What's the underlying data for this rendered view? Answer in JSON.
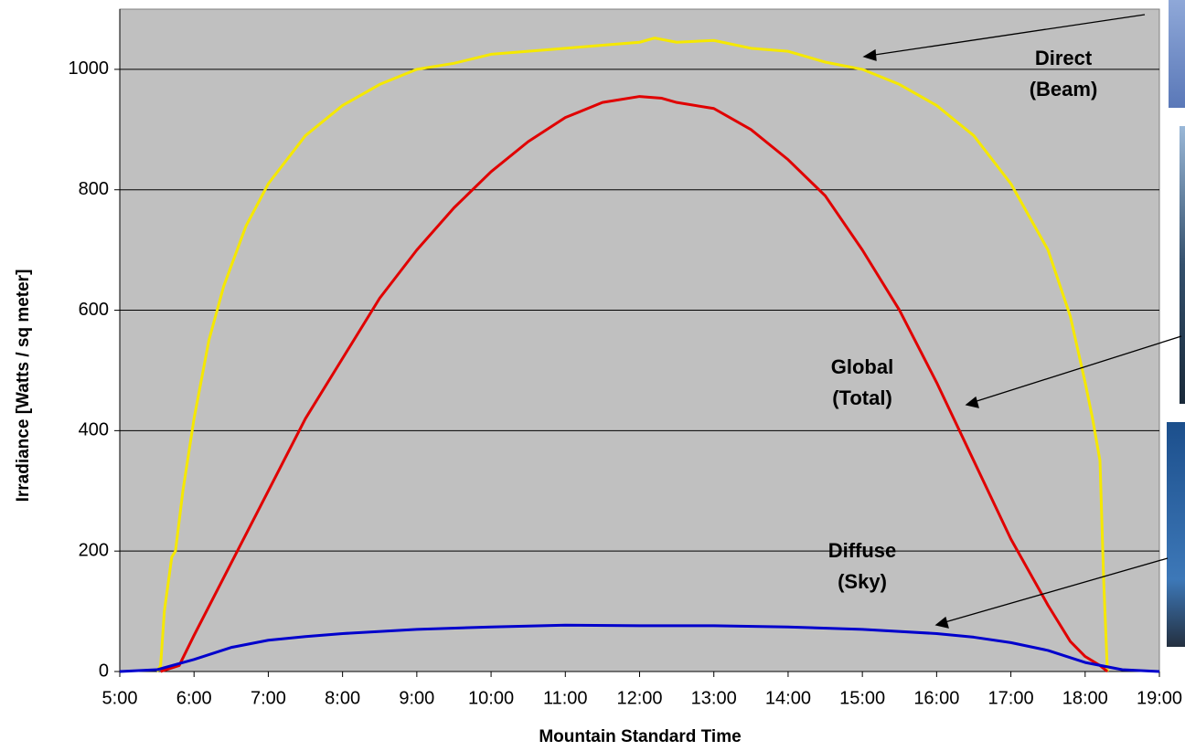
{
  "chart_data": {
    "type": "line",
    "x_label": "Mountain Standard Time",
    "y_label": "Irradiance [Watts / sq meter]",
    "xlim": [
      5,
      19
    ],
    "xticks": [
      {
        "value": 5,
        "label": "5:00"
      },
      {
        "value": 6,
        "label": "6:00"
      },
      {
        "value": 7,
        "label": "7:00"
      },
      {
        "value": 8,
        "label": "8:00"
      },
      {
        "value": 9,
        "label": "9:00"
      },
      {
        "value": 10,
        "label": "10:00"
      },
      {
        "value": 11,
        "label": "11:00"
      },
      {
        "value": 12,
        "label": "12:00"
      },
      {
        "value": 13,
        "label": "13:00"
      },
      {
        "value": 14,
        "label": "14:00"
      },
      {
        "value": 15,
        "label": "15:00"
      },
      {
        "value": 16,
        "label": "16:00"
      },
      {
        "value": 17,
        "label": "17:00"
      },
      {
        "value": 18,
        "label": "18:00"
      },
      {
        "value": 19,
        "label": "19:00"
      }
    ],
    "ylim": [
      0,
      1100
    ],
    "yticks": [
      0,
      200,
      400,
      600,
      800,
      1000
    ],
    "grid": true,
    "background": "#c0c0c0",
    "series": [
      {
        "color": "#f5e800",
        "x": [
          5.5,
          5.55,
          5.6,
          5.7,
          5.75,
          5.85,
          6,
          6.2,
          6.4,
          6.7,
          7,
          7.5,
          8,
          8.5,
          9,
          9.5,
          10,
          10.5,
          11,
          11.5,
          12,
          12.2,
          12.5,
          13,
          13.5,
          14,
          14.5,
          15,
          15.5,
          16,
          16.5,
          17,
          17.5,
          17.8,
          18,
          18.1,
          18.2,
          18.25,
          18.3
        ],
        "values": [
          0,
          10,
          100,
          190,
          200,
          300,
          420,
          550,
          640,
          740,
          810,
          890,
          940,
          975,
          1000,
          1010,
          1025,
          1030,
          1035,
          1040,
          1045,
          1052,
          1045,
          1048,
          1035,
          1030,
          1012,
          1000,
          975,
          940,
          890,
          810,
          700,
          590,
          480,
          420,
          350,
          150,
          0
        ]
      },
      {
        "color": "#e00000",
        "x": [
          5.55,
          5.8,
          6,
          6.5,
          7,
          7.5,
          8,
          8.5,
          9,
          9.5,
          10,
          10.5,
          11,
          11.5,
          12,
          12.3,
          12.5,
          13,
          13.5,
          14,
          14.5,
          15,
          15.5,
          16,
          16.5,
          17,
          17.5,
          17.8,
          18,
          18.2,
          18.3
        ],
        "values": [
          0,
          10,
          60,
          180,
          300,
          420,
          520,
          620,
          700,
          770,
          830,
          880,
          920,
          945,
          955,
          952,
          945,
          935,
          900,
          850,
          790,
          700,
          600,
          480,
          350,
          220,
          110,
          50,
          25,
          10,
          0
        ]
      },
      {
        "color": "#0000cc",
        "x": [
          5,
          5.5,
          6,
          6.5,
          7,
          7.5,
          8,
          9,
          10,
          11,
          12,
          13,
          14,
          15,
          16,
          16.5,
          17,
          17.5,
          18,
          18.5,
          19
        ],
        "values": [
          0,
          3,
          20,
          40,
          52,
          58,
          63,
          70,
          74,
          77,
          76,
          76,
          74,
          70,
          63,
          57,
          48,
          35,
          15,
          3,
          0
        ]
      }
    ],
    "annotations": [
      {
        "text": [
          "Direct",
          "(Beam)"
        ]
      },
      {
        "text": [
          "Global",
          "(Total)"
        ]
      },
      {
        "text": [
          "Diffuse",
          "(Sky)"
        ]
      }
    ]
  }
}
